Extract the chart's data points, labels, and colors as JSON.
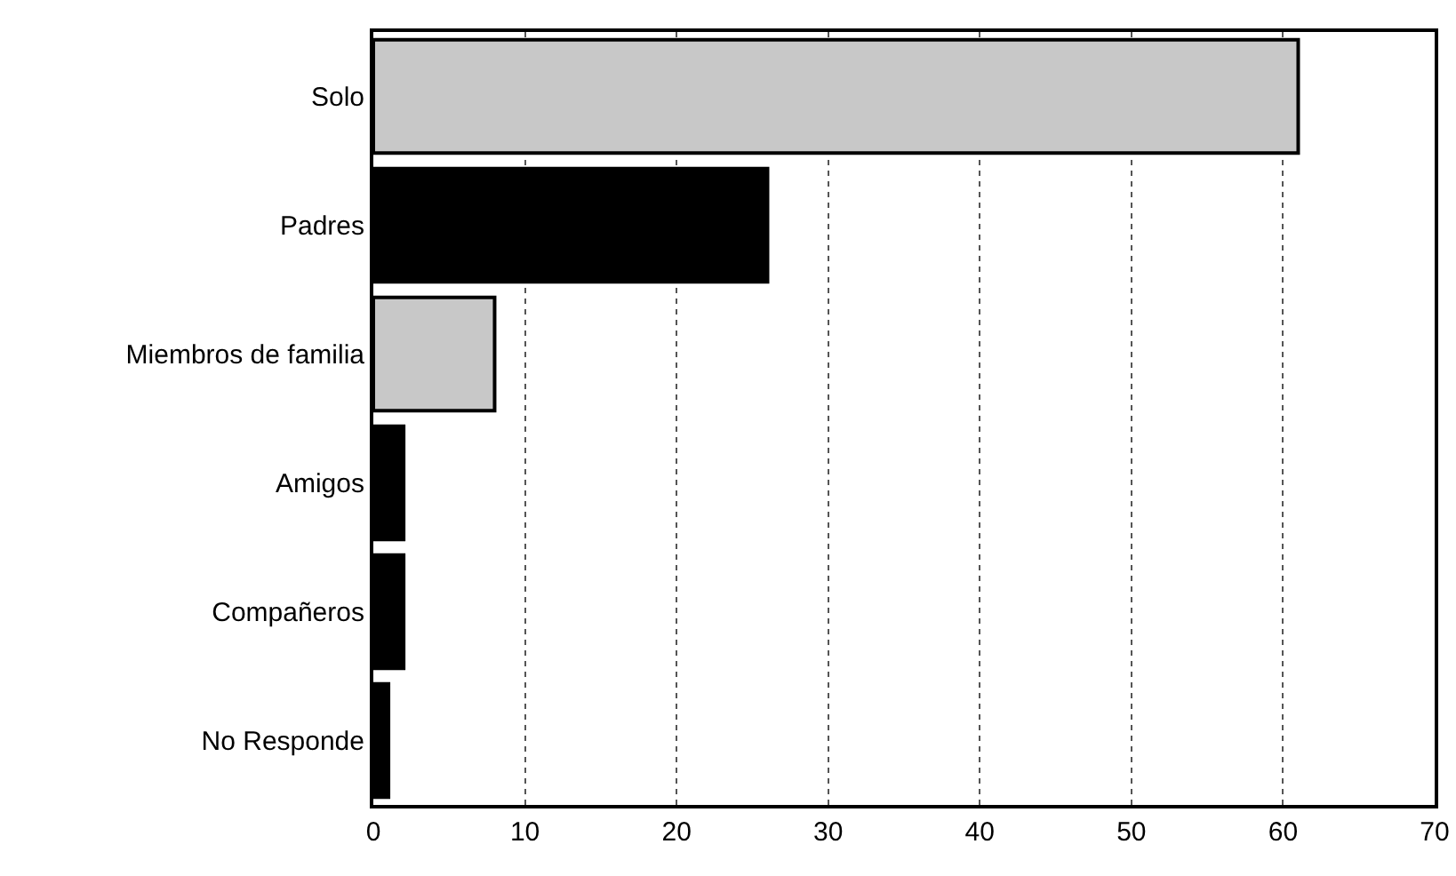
{
  "chart_data": {
    "type": "bar",
    "orientation": "horizontal",
    "categories": [
      "Solo",
      "Padres",
      "Miembros de familia",
      "Amigos",
      "Compañeros",
      "No Responde"
    ],
    "values": [
      61,
      26,
      8,
      2,
      2,
      1
    ],
    "colors": [
      "#c8c8c8",
      "#000000",
      "#c8c8c8",
      "#000000",
      "#000000",
      "#000000"
    ],
    "xlim": [
      0,
      70
    ],
    "xticks": [
      0,
      10,
      20,
      30,
      40,
      50,
      60,
      70
    ],
    "grid": "x",
    "legend": false
  }
}
